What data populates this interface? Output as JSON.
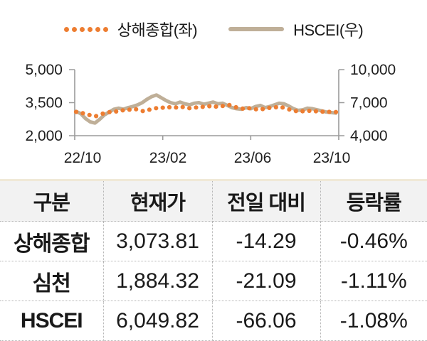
{
  "legend": {
    "series1": "상해종합(좌)",
    "series2": "HSCEI(우)"
  },
  "chart_data": {
    "type": "line",
    "title": "",
    "x_tick_labels": [
      "22/10",
      "23/02",
      "23/06",
      "23/10"
    ],
    "left_axis": {
      "label": "상해종합(좌)",
      "ticks": [
        "5,000",
        "3,500",
        "2,000"
      ],
      "range": [
        2000,
        5000
      ]
    },
    "right_axis": {
      "label": "HSCEI(우)",
      "ticks": [
        "10,000",
        "7,000",
        "4,000"
      ],
      "range": [
        4000,
        10000
      ]
    },
    "legend_position": "top",
    "grid": false,
    "series": [
      {
        "name": "상해종합(좌)",
        "axis": "left",
        "style": "dotted",
        "color": "#ED7D31",
        "values": [
          3080,
          3020,
          2940,
          2890,
          3000,
          3070,
          3100,
          3150,
          3180,
          3200,
          3120,
          3180,
          3250,
          3270,
          3290,
          3280,
          3300,
          3250,
          3280,
          3310,
          3340,
          3320,
          3350,
          3390,
          3290,
          3230,
          3250,
          3200,
          3210,
          3260,
          3290,
          3280,
          3190,
          3120,
          3110,
          3130,
          3110,
          3090,
          3080,
          3073.81
        ]
      },
      {
        "name": "HSCEI(우)",
        "axis": "right",
        "style": "solid",
        "color": "#BFAF98",
        "values": [
          6200,
          6000,
          5550,
          5250,
          5150,
          5500,
          5900,
          6150,
          6400,
          6500,
          6400,
          6550,
          6650,
          6800,
          7000,
          7300,
          7550,
          7700,
          7450,
          7200,
          7000,
          6900,
          7050,
          6900,
          6800,
          6950,
          7000,
          6850,
          6950,
          7050,
          6900,
          6950,
          6750,
          6550,
          6450,
          6400,
          6550,
          6450,
          6650,
          6750,
          6550,
          6650,
          6800,
          6950,
          6900,
          6700,
          6450,
          6300,
          6350,
          6500,
          6450,
          6350,
          6250,
          6150,
          6100,
          6049.82
        ]
      }
    ]
  },
  "table": {
    "headers": [
      "구분",
      "현재가",
      "전일 대비",
      "등락률"
    ],
    "rows": [
      {
        "name": "상해종합",
        "price": "3,073.81",
        "change": "-14.29",
        "rate": "-0.46%"
      },
      {
        "name": "심천",
        "price": "1,884.32",
        "change": "-21.09",
        "rate": "-1.11%"
      },
      {
        "name": "HSCEI",
        "price": "6,049.82",
        "change": "-66.06",
        "rate": "-1.08%"
      }
    ]
  },
  "colors": {
    "shanghai": "#ED7D31",
    "hscei": "#BFAF98",
    "axis": "#9B9B9B",
    "table_top_border": "#F0E9D7",
    "header_bg": "#F2F2F2",
    "divider": "#B5B5B5"
  }
}
